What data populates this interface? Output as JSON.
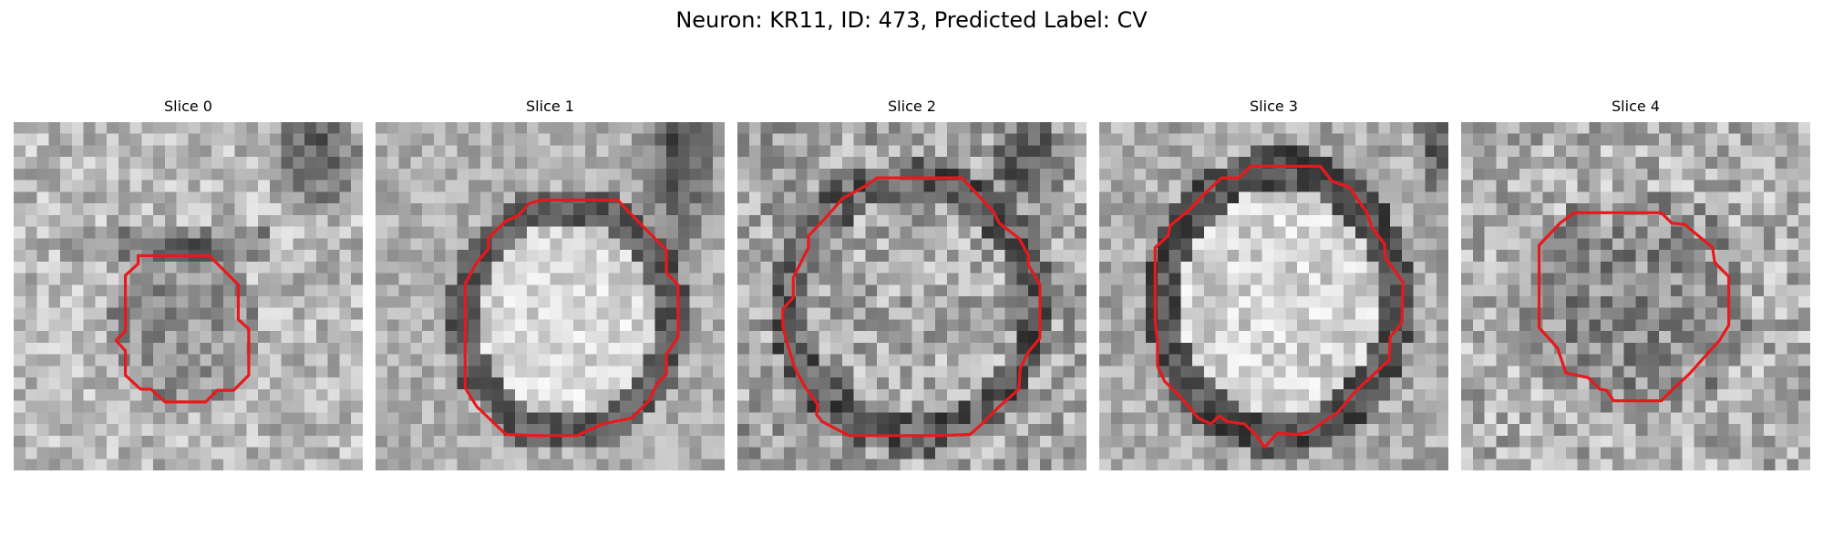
{
  "figure": {
    "suptitle": "Neuron: KR11, ID: 473, Predicted Label: CV"
  },
  "panels": [
    {
      "title": "Slice 0"
    },
    {
      "title": "Slice 1"
    },
    {
      "title": "Slice 2"
    },
    {
      "title": "Slice 3"
    },
    {
      "title": "Slice 4"
    }
  ],
  "colors": {
    "contour": "#e8191c",
    "background": "#ffffff"
  }
}
